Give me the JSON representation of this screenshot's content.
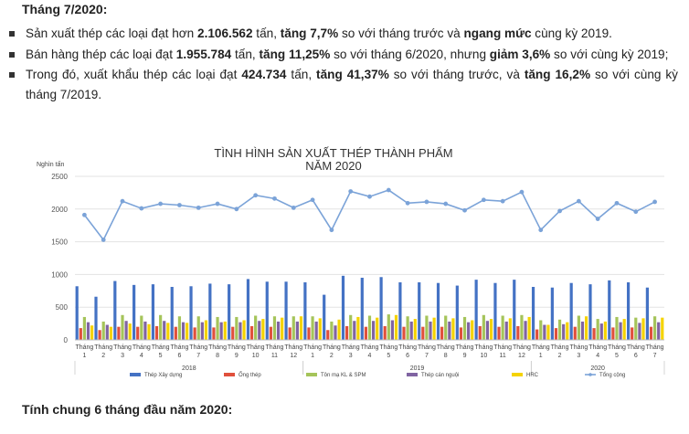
{
  "section_title": "Tháng 7/2020:",
  "bullets": [
    {
      "parts": [
        {
          "t": "Sản xuất thép các loại đạt hơn ",
          "b": false
        },
        {
          "t": "2.106.562",
          "b": true
        },
        {
          "t": " tấn, ",
          "b": false
        },
        {
          "t": "tăng 7,7%",
          "b": true
        },
        {
          "t": " so với tháng trước và ",
          "b": false
        },
        {
          "t": "ngang mức",
          "b": true
        },
        {
          "t": " cùng kỳ 2019.",
          "b": false
        }
      ]
    },
    {
      "parts": [
        {
          "t": "Bán hàng thép các loại đạt ",
          "b": false
        },
        {
          "t": "1.955.784",
          "b": true
        },
        {
          "t": " tấn, ",
          "b": false
        },
        {
          "t": "tăng 11,25%",
          "b": true
        },
        {
          "t": " so với tháng 6/2020, nhưng ",
          "b": false
        },
        {
          "t": "giảm 3,6%",
          "b": true
        },
        {
          "t": " so với cùng kỳ 2019;",
          "b": false
        }
      ]
    },
    {
      "parts": [
        {
          "t": "Trong đó, xuất khẩu thép các loại đạt ",
          "b": false
        },
        {
          "t": "424.734",
          "b": true
        },
        {
          "t": " tấn, ",
          "b": false
        },
        {
          "t": "tăng 41,37%",
          "b": true
        },
        {
          "t": " so với tháng trước, và ",
          "b": false
        },
        {
          "t": "tăng 16,2%",
          "b": true
        },
        {
          "t": " so với cùng kỳ tháng 7/2019.",
          "b": false
        }
      ]
    }
  ],
  "footer_title": "Tính chung 6 tháng đầu năm 2020:",
  "chart_data": {
    "type": "bar",
    "title_lines": [
      "TÌNH HÌNH SẢN XUẤT THÉP THÀNH PHẨM",
      "NĂM 2020"
    ],
    "ylabel": "Nghìn tấn",
    "ylim": [
      0,
      2500
    ],
    "yticks": [
      0,
      500,
      1000,
      1500,
      2000,
      2500
    ],
    "category_prefix": "Tháng",
    "categories": [
      "1",
      "2",
      "3",
      "4",
      "5",
      "6",
      "7",
      "8",
      "9",
      "10",
      "11",
      "12",
      "1",
      "2",
      "3",
      "4",
      "5",
      "6",
      "7",
      "8",
      "9",
      "10",
      "11",
      "12",
      "1",
      "2",
      "3",
      "4",
      "5",
      "6",
      "7"
    ],
    "year_groups": [
      {
        "label": "2018",
        "from": 0,
        "to": 11
      },
      {
        "label": "2019",
        "from": 12,
        "to": 23
      },
      {
        "label": "2020",
        "from": 24,
        "to": 30
      }
    ],
    "series": [
      {
        "name": "Thép Xây dựng",
        "kind": "bar",
        "color": "#4472c4",
        "values": [
          820,
          660,
          900,
          840,
          850,
          810,
          820,
          860,
          850,
          930,
          890,
          890,
          880,
          690,
          980,
          950,
          960,
          880,
          880,
          870,
          830,
          920,
          870,
          920,
          810,
          800,
          870,
          850,
          910,
          880,
          800
        ]
      },
      {
        "name": "Ống thép",
        "kind": "bar",
        "color": "#e0503c",
        "values": [
          180,
          150,
          200,
          200,
          210,
          200,
          190,
          190,
          200,
          210,
          200,
          190,
          190,
          150,
          210,
          200,
          210,
          200,
          200,
          200,
          190,
          210,
          200,
          210,
          160,
          180,
          200,
          180,
          190,
          190,
          200
        ]
      },
      {
        "name": "Tôn mạ KL & SPM",
        "kind": "bar",
        "color": "#a5c45a",
        "values": [
          350,
          280,
          380,
          370,
          380,
          360,
          360,
          350,
          350,
          370,
          360,
          360,
          360,
          280,
          380,
          370,
          390,
          360,
          370,
          370,
          350,
          380,
          370,
          380,
          300,
          310,
          370,
          320,
          350,
          340,
          360
        ]
      },
      {
        "name": "Thép cán nguội",
        "kind": "bar",
        "color": "#8064a2",
        "values": [
          270,
          230,
          290,
          280,
          290,
          270,
          270,
          270,
          270,
          290,
          280,
          280,
          280,
          220,
          290,
          290,
          300,
          280,
          280,
          280,
          270,
          290,
          280,
          290,
          230,
          240,
          280,
          250,
          270,
          260,
          270
        ]
      },
      {
        "name": "HRC",
        "kind": "bar",
        "color": "#f5d300",
        "values": [
          220,
          200,
          250,
          240,
          260,
          260,
          300,
          280,
          300,
          320,
          340,
          360,
          330,
          310,
          350,
          340,
          380,
          320,
          340,
          330,
          300,
          320,
          330,
          350,
          230,
          270,
          360,
          280,
          320,
          330,
          340
        ]
      },
      {
        "name": "Tổng cộng",
        "kind": "line",
        "color": "#7ba3d8",
        "values": [
          1910,
          1530,
          2120,
          2010,
          2080,
          2060,
          2020,
          2080,
          2000,
          2210,
          2160,
          2020,
          2140,
          1680,
          2270,
          2190,
          2290,
          2090,
          2110,
          2080,
          1980,
          2140,
          2120,
          2260,
          1680,
          1970,
          2120,
          1850,
          2090,
          1960,
          2110
        ]
      }
    ]
  }
}
